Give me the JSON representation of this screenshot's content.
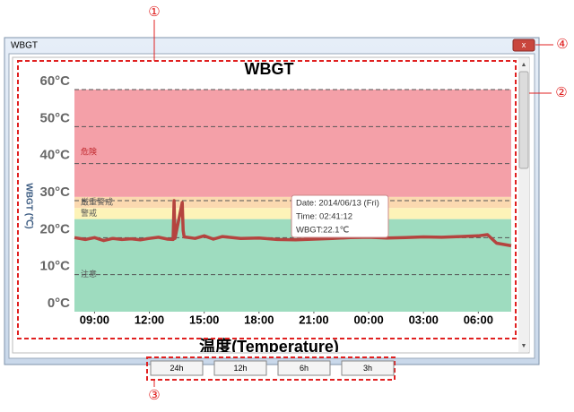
{
  "window": {
    "title": "WBGT",
    "close": "x"
  },
  "chart_data": {
    "type": "line",
    "title": "WBGT",
    "y_label": "WBGT (℃)",
    "bottom_title": "温度(Temperature)",
    "x": [
      7.9,
      8.5,
      9,
      9.5,
      10,
      10.5,
      11,
      11.5,
      12,
      12.5,
      13,
      13.3,
      13.35,
      13.4,
      13.8,
      13.85,
      13.9,
      14.5,
      15,
      15.5,
      16,
      17,
      18,
      19,
      20,
      21,
      22,
      23,
      24,
      25,
      26,
      27,
      28,
      29,
      30,
      30.5,
      31,
      31.8
    ],
    "series": [
      {
        "name": "WBGT",
        "color": "#b5443f",
        "values": [
          20,
          19.5,
          20,
          19.2,
          19.8,
          19.5,
          19.7,
          19.4,
          19.8,
          20.1,
          19.6,
          19.5,
          30,
          19.8,
          29.5,
          22,
          20.2,
          19.8,
          20.5,
          19.6,
          20.3,
          19.8,
          19.9,
          19.5,
          19.4,
          19.6,
          19.8,
          20,
          20.1,
          19.9,
          20,
          20.2,
          20.1,
          20.3,
          20.5,
          20.8,
          18.5,
          17.8
        ]
      }
    ],
    "xlim": [
      7.9,
      31.8
    ],
    "xticks": [
      {
        "value": 9,
        "label": "09:00"
      },
      {
        "value": 12,
        "label": "12:00"
      },
      {
        "value": 15,
        "label": "15:00"
      },
      {
        "value": 18,
        "label": "18:00"
      },
      {
        "value": 21,
        "label": "21:00"
      },
      {
        "value": 24,
        "label": "00:00"
      },
      {
        "value": 27,
        "label": "03:00"
      },
      {
        "value": 30,
        "label": "06:00"
      }
    ],
    "ylim": [
      0,
      60
    ],
    "yticks": [
      {
        "value": 0,
        "label": "0°C"
      },
      {
        "value": 10,
        "label": "10°C"
      },
      {
        "value": 20,
        "label": "20°C"
      },
      {
        "value": 30,
        "label": "30°C"
      },
      {
        "value": 40,
        "label": "40°C"
      },
      {
        "value": 50,
        "label": "50°C"
      },
      {
        "value": 60,
        "label": "60°C"
      }
    ],
    "grid": true,
    "bands": [
      {
        "label": "危険",
        "from": 31,
        "to": 60,
        "color": "#f4a0a8",
        "label_at": 43
      },
      {
        "label": "厳重警戒",
        "from": 28,
        "to": 31,
        "color": "#fbd9b0",
        "label_at": 29.5
      },
      {
        "label": "警戒",
        "from": 25,
        "to": 28,
        "color": "#fdf3b8",
        "label_at": 26.5
      },
      {
        "label": "注意",
        "from": 0,
        "to": 25,
        "color": "#9edcbf",
        "label_at": 10
      }
    ],
    "tooltip": [
      "Date: 2014/06/13 (Fri)",
      "Time: 02:41:12",
      "WBGT:22.1℃"
    ]
  },
  "buttons": [
    "24h",
    "12h",
    "6h",
    "3h"
  ],
  "callouts": [
    "①",
    "②",
    "③",
    "④"
  ]
}
